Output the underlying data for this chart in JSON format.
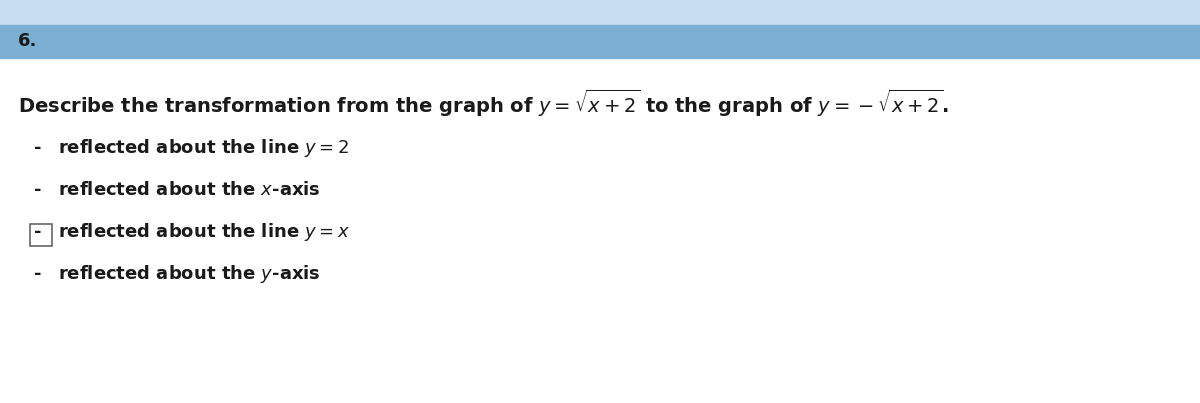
{
  "question_number": "6.",
  "question_text_plain": "Describe the transformation from the graph of ",
  "eq1": "$y = \\sqrt{x + 2}$",
  "mid_text": " to the graph of ",
  "eq2": "$y = -\\sqrt{x + 2}$",
  "eq2_suffix": ".",
  "options": [
    "reflected about the line $y = 2$",
    "reflected about the $x$-axis",
    "reflected about the line $y = x$",
    "reflected about the $y$-axis"
  ],
  "highlighted_option_index": 2,
  "header_color": "#7BAFD4",
  "background_color": "#FFFFFF",
  "content_bg_color": "#F0F0F0",
  "text_color": "#1A1A1A",
  "header_top_color": "#C8DCF0",
  "font_size_question": 14,
  "font_size_number": 13,
  "font_size_options": 13
}
